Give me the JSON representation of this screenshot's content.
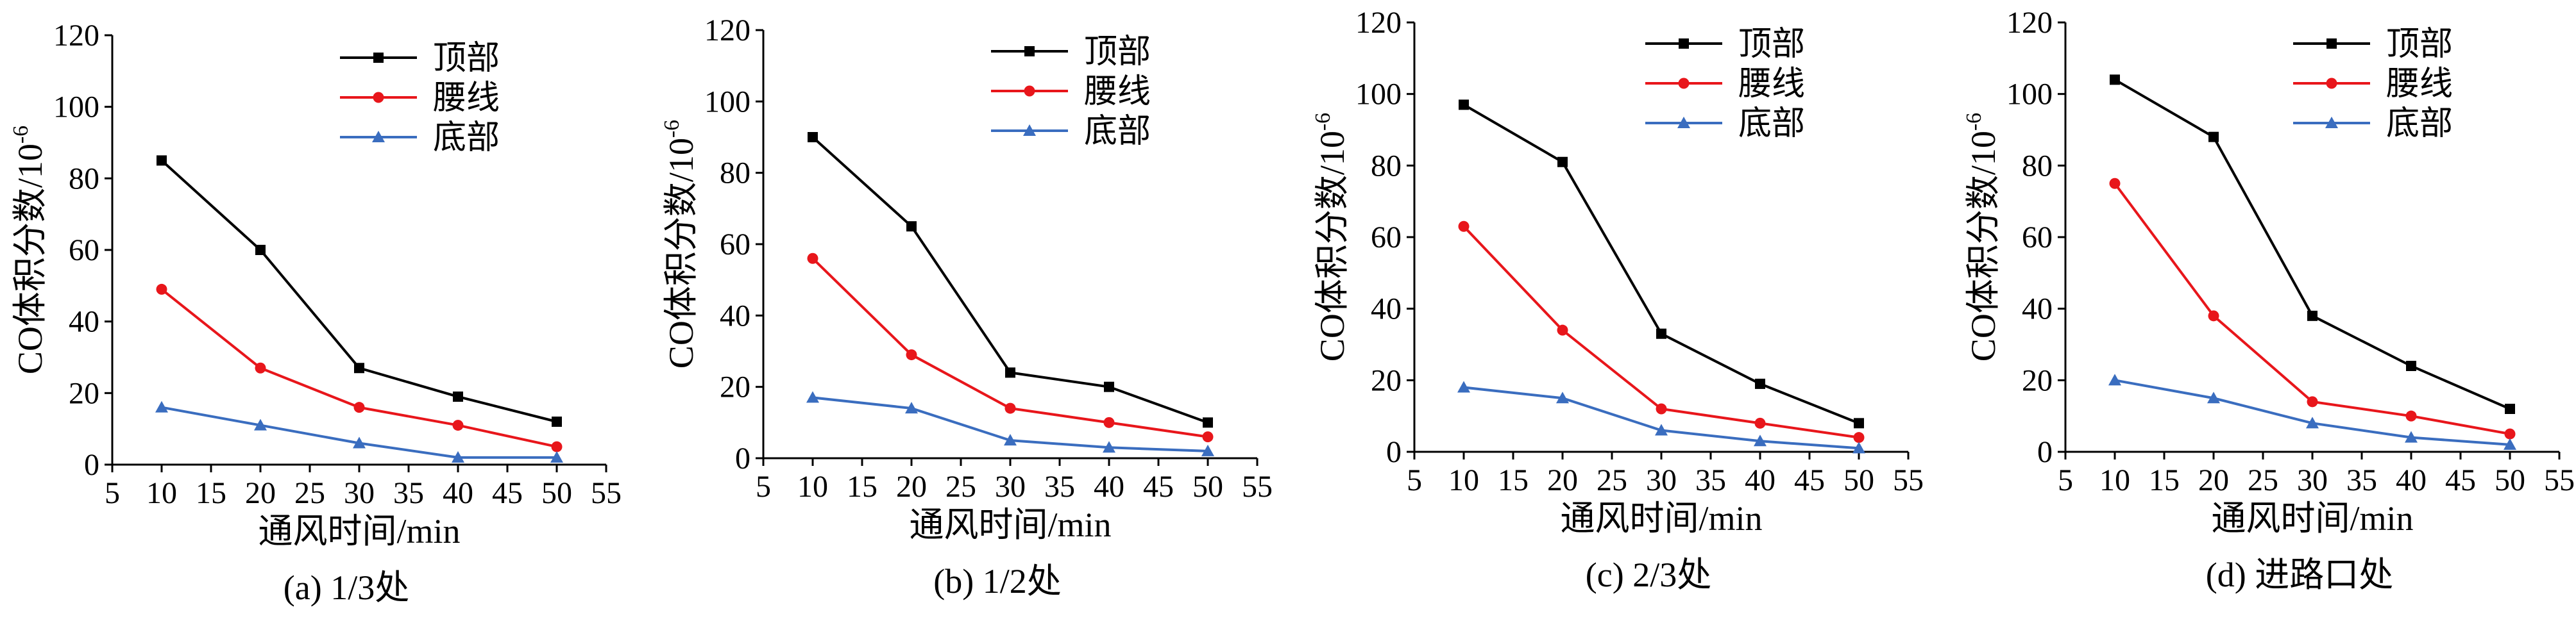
{
  "colors": {
    "series_1": "#000000",
    "series_2": "#e8161b",
    "series_3": "#3a6dbf"
  },
  "chart_data": [
    {
      "type": "line",
      "caption": "(a) 1/3处",
      "xlabel": "通风时间/min",
      "ylabel": "CO体积分数/10",
      "ylabel_sup": "-6",
      "xlim": [
        5,
        55
      ],
      "ylim": [
        0,
        120
      ],
      "xticks": [
        5,
        10,
        15,
        20,
        25,
        30,
        35,
        40,
        45,
        50,
        55
      ],
      "yticks": [
        0,
        20,
        40,
        60,
        80,
        100,
        120
      ],
      "x": [
        10,
        20,
        30,
        40,
        50
      ],
      "series": [
        {
          "name": "顶部",
          "marker": "square",
          "values": [
            85,
            60,
            27,
            19,
            12
          ]
        },
        {
          "name": "腰线",
          "marker": "circle",
          "values": [
            49,
            27,
            16,
            11,
            5
          ]
        },
        {
          "name": "底部",
          "marker": "triangle",
          "values": [
            16,
            11,
            6,
            2,
            2
          ]
        }
      ],
      "legend_position": "top-center",
      "grid": false
    },
    {
      "type": "line",
      "caption": "(b) 1/2处",
      "xlabel": "通风时间/min",
      "ylabel": "CO体积分数/10",
      "ylabel_sup": "-6",
      "xlim": [
        5,
        55
      ],
      "ylim": [
        0,
        120
      ],
      "xticks": [
        5,
        10,
        15,
        20,
        25,
        30,
        35,
        40,
        45,
        50,
        55
      ],
      "yticks": [
        0,
        20,
        40,
        60,
        80,
        100,
        120
      ],
      "x": [
        10,
        20,
        30,
        40,
        50
      ],
      "series": [
        {
          "name": "顶部",
          "marker": "square",
          "values": [
            90,
            65,
            24,
            20,
            10
          ]
        },
        {
          "name": "腰线",
          "marker": "circle",
          "values": [
            56,
            29,
            14,
            10,
            6
          ]
        },
        {
          "name": "底部",
          "marker": "triangle",
          "values": [
            17,
            14,
            5,
            3,
            2
          ]
        }
      ],
      "legend_position": "top-right",
      "grid": false
    },
    {
      "type": "line",
      "caption": "(c) 2/3处",
      "xlabel": "通风时间/min",
      "ylabel": "CO体积分数/10",
      "ylabel_sup": "-6",
      "xlim": [
        5,
        55
      ],
      "ylim": [
        0,
        120
      ],
      "xticks": [
        5,
        10,
        15,
        20,
        25,
        30,
        35,
        40,
        45,
        50,
        55
      ],
      "yticks": [
        0,
        20,
        40,
        60,
        80,
        100,
        120
      ],
      "x": [
        10,
        20,
        30,
        40,
        50
      ],
      "series": [
        {
          "name": "顶部",
          "marker": "square",
          "values": [
            97,
            81,
            33,
            19,
            8
          ]
        },
        {
          "name": "腰线",
          "marker": "circle",
          "values": [
            63,
            34,
            12,
            8,
            4
          ]
        },
        {
          "name": "底部",
          "marker": "triangle",
          "values": [
            18,
            15,
            6,
            3,
            1
          ]
        }
      ],
      "legend_position": "top-right",
      "grid": false
    },
    {
      "type": "line",
      "caption": "(d) 进路口处",
      "xlabel": "通风时间/min",
      "ylabel": "CO体积分数/10",
      "ylabel_sup": "-6",
      "xlim": [
        5,
        55
      ],
      "ylim": [
        0,
        120
      ],
      "xticks": [
        5,
        10,
        15,
        20,
        25,
        30,
        35,
        40,
        45,
        50,
        55
      ],
      "yticks": [
        0,
        20,
        40,
        60,
        80,
        100,
        120
      ],
      "x": [
        10,
        20,
        30,
        40,
        50
      ],
      "series": [
        {
          "name": "顶部",
          "marker": "square",
          "values": [
            104,
            88,
            38,
            24,
            12
          ]
        },
        {
          "name": "腰线",
          "marker": "circle",
          "values": [
            75,
            38,
            14,
            10,
            5
          ]
        },
        {
          "name": "底部",
          "marker": "triangle",
          "values": [
            20,
            15,
            8,
            4,
            2
          ]
        }
      ],
      "legend_position": "top-right",
      "grid": false
    }
  ]
}
